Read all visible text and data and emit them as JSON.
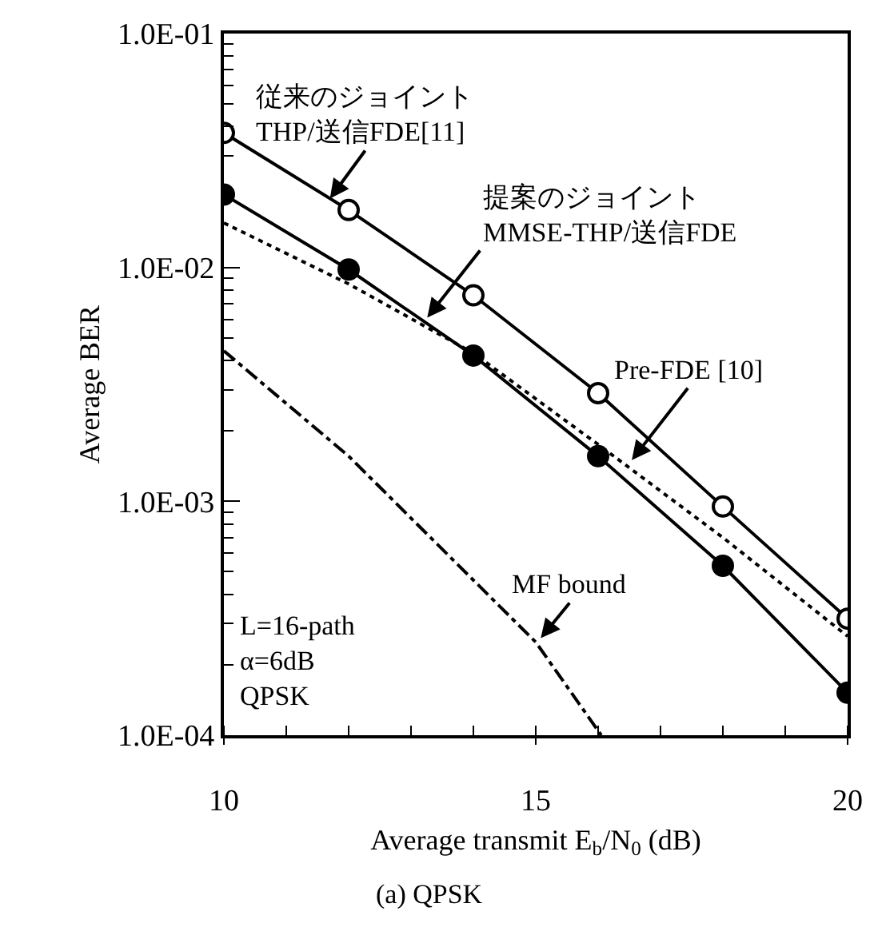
{
  "chart_data": {
    "type": "line",
    "xlabel": "Average transmit E$_{b}$/N$_{0}$ (dB)",
    "ylabel": "Average BER",
    "log": "y",
    "xlim": [
      10,
      20
    ],
    "xticks": [
      10,
      15,
      20
    ],
    "ylim": [
      0.0001,
      0.1
    ],
    "yticks": [
      {
        "value": 0.0001,
        "label": "1.0E-04"
      },
      {
        "value": 0.001,
        "label": "1.0E-03"
      },
      {
        "value": 0.01,
        "label": "1.0E-02"
      },
      {
        "value": 0.1,
        "label": "1.0E-01"
      }
    ],
    "series": [
      {
        "color": "#000000",
        "marker": "circle-open",
        "line_style": "solid",
        "x": [
          10,
          12,
          14,
          16,
          18,
          20
        ],
        "values": [
          0.0376,
          0.0176,
          0.0076,
          0.0029,
          0.00095,
          0.000315
        ]
      },
      {
        "color": "#000000",
        "marker": "circle",
        "line_style": "solid",
        "x": [
          10,
          12,
          14,
          16,
          18,
          20
        ],
        "values": [
          0.0205,
          0.0098,
          0.0042,
          0.00156,
          0.00053,
          0.000152
        ]
      },
      {
        "color": "#000000",
        "marker": "none",
        "line_style": "dotted",
        "x": [
          10,
          12,
          14,
          16,
          18,
          20
        ],
        "values": [
          0.0155,
          0.0085,
          0.0043,
          0.00175,
          0.0007,
          0.000265
        ]
      },
      {
        "color": "#000000",
        "marker": "none",
        "line_style": "dashdot",
        "x": [
          10,
          12,
          15,
          16.05
        ],
        "values": [
          0.0044,
          0.00156,
          0.00025,
          0.0001
        ]
      }
    ],
    "annotations": [
      {
        "text": "従来のジョイント\nTHP/送信FDE[11]",
        "x": 11.7,
        "y": 0.0197
      },
      {
        "text": "提案のジョイント\nMMSE-THP/送信FDE",
        "x": 13.26,
        "y": 0.0061
      },
      {
        "text": "Pre-FDE [10]",
        "x": 16.54,
        "y": 0.0015
      },
      {
        "text": "MF bound",
        "x": 15.08,
        "y": 0.00026
      },
      "L=16-path\nα=6dB\nQPSK",
      "(a) QPSK"
    ]
  }
}
